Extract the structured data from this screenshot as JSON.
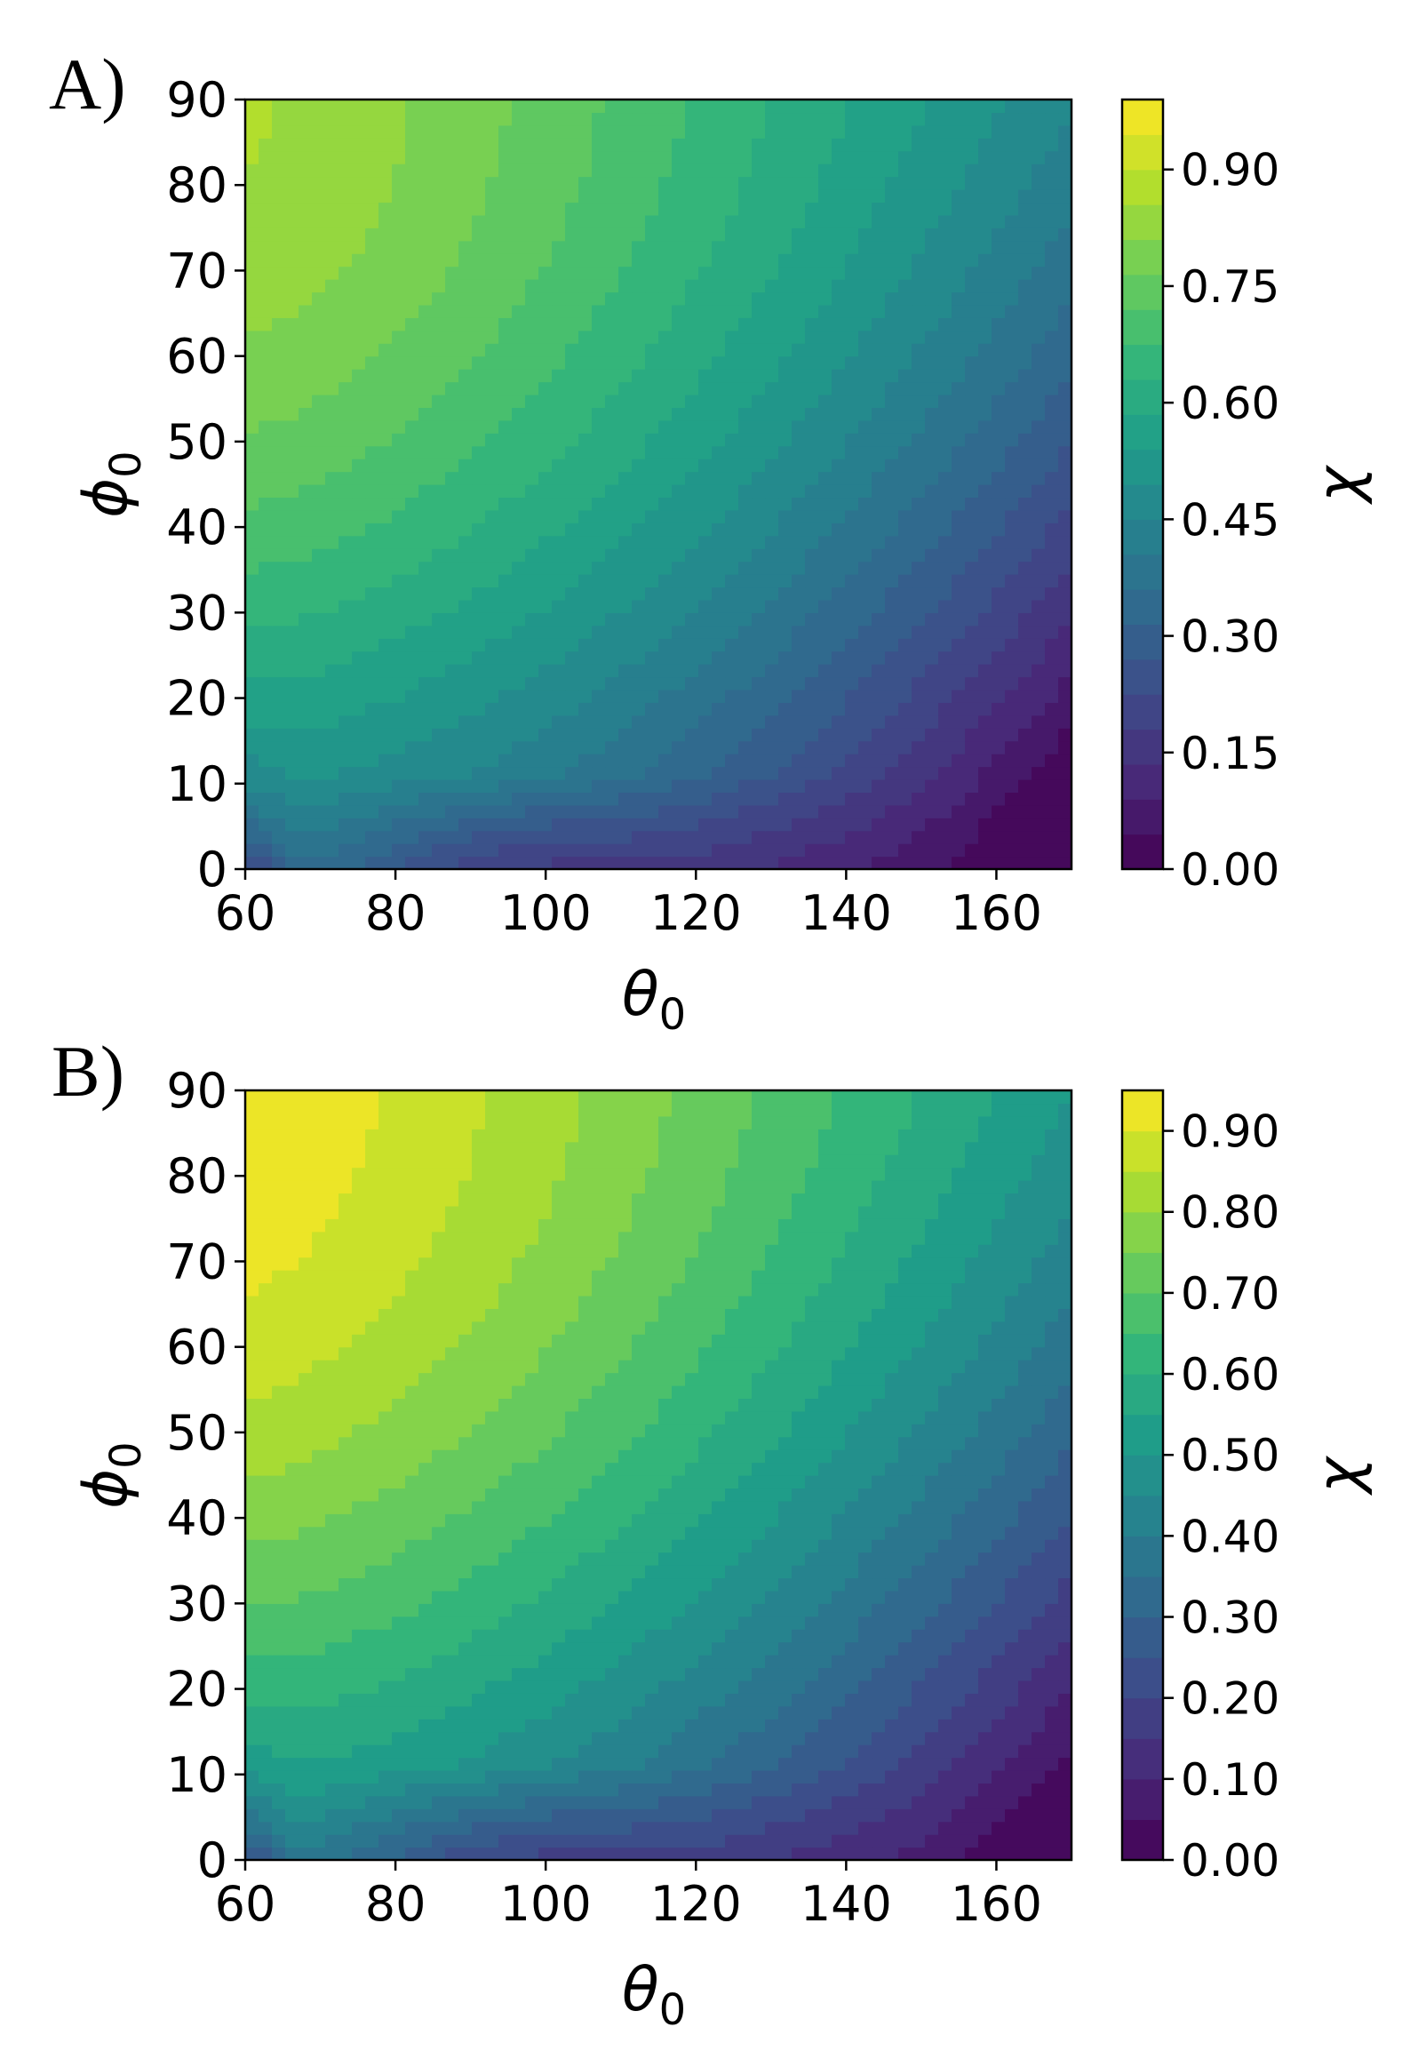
{
  "chart_data": [
    {
      "type": "heatmap",
      "panel_label": "A)",
      "xlabel": "θ",
      "xlabel_sub": "0",
      "ylabel": "ϕ",
      "ylabel_sub": "0",
      "xlim": [
        60,
        170
      ],
      "ylim": [
        0,
        90
      ],
      "xticks": [
        "60",
        "80",
        "100",
        "120",
        "140",
        "160"
      ],
      "yticks": [
        "0",
        "10",
        "20",
        "30",
        "40",
        "50",
        "60",
        "70",
        "80",
        "90"
      ],
      "colorbar_label": "χ",
      "colorbar_range": [
        0.0,
        0.99
      ],
      "colorbar_ticks": [
        "0.00",
        "0.15",
        "0.30",
        "0.45",
        "0.60",
        "0.75",
        "0.90"
      ],
      "colorbar_tick_values": [
        0.0,
        0.15,
        0.3,
        0.45,
        0.6,
        0.75,
        0.9
      ],
      "levels": 22,
      "colormap": "viridis",
      "max_value": 0.86
    },
    {
      "type": "heatmap",
      "panel_label": "B)",
      "xlabel": "θ",
      "xlabel_sub": "0",
      "ylabel": "ϕ",
      "ylabel_sub": "0",
      "xlim": [
        60,
        170
      ],
      "ylim": [
        0,
        90
      ],
      "xticks": [
        "60",
        "80",
        "100",
        "120",
        "140",
        "160"
      ],
      "yticks": [
        "0",
        "10",
        "20",
        "30",
        "40",
        "50",
        "60",
        "70",
        "80",
        "90"
      ],
      "colorbar_label": "χ",
      "colorbar_range": [
        0.0,
        0.95
      ],
      "colorbar_ticks": [
        "0.00",
        "0.10",
        "0.20",
        "0.30",
        "0.40",
        "0.50",
        "0.60",
        "0.70",
        "0.80",
        "0.90"
      ],
      "colorbar_tick_values": [
        0.0,
        0.1,
        0.2,
        0.3,
        0.4,
        0.5,
        0.6,
        0.7,
        0.8,
        0.9
      ],
      "levels": 19,
      "colormap": "viridis",
      "max_value": 0.94
    }
  ]
}
